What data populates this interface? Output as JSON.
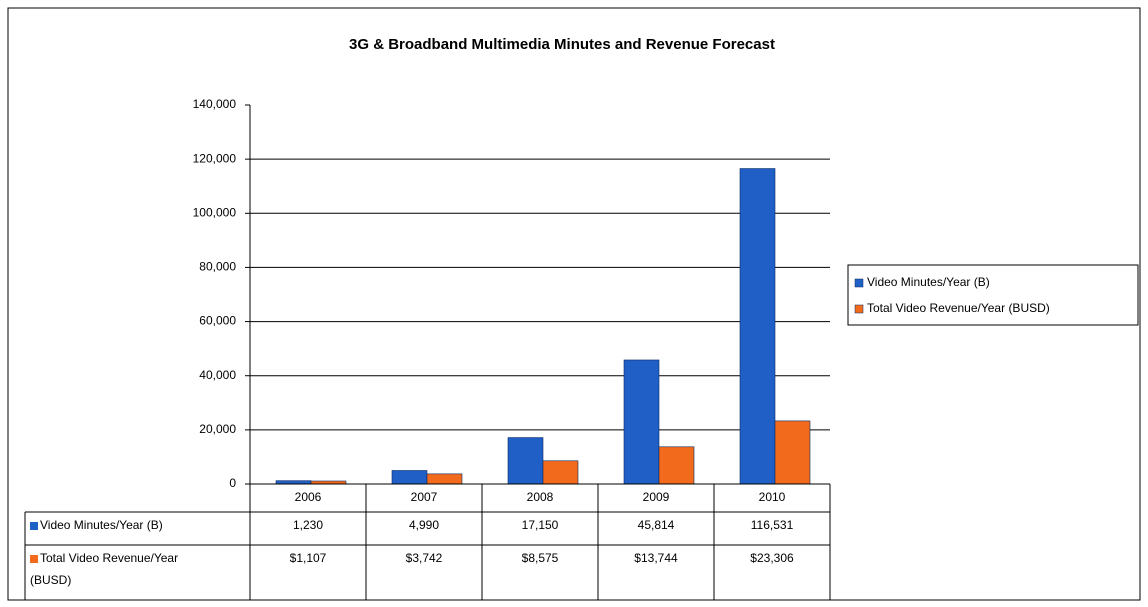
{
  "chart_data": {
    "type": "bar",
    "title": "3G & Broadband Multimedia Minutes and Revenue Forecast",
    "categories": [
      "2006",
      "2007",
      "2008",
      "2009",
      "2010"
    ],
    "series": [
      {
        "name": "Video Minutes/Year (B)",
        "color": "#1f5fc6",
        "values": [
          1230,
          4990,
          17150,
          45814,
          116531
        ],
        "value_labels": [
          "1,230",
          "4,990",
          "17,150",
          "45,814",
          "116,531"
        ]
      },
      {
        "name": "Total Video Revenue/Year (BUSD)",
        "color": "#f26a1b",
        "values": [
          1107,
          3742,
          8575,
          13744,
          23306
        ],
        "value_labels": [
          "$1,107",
          "$3,742",
          "$8,575",
          "$13,744",
          "$23,306"
        ]
      }
    ],
    "ylim": [
      0,
      140000
    ],
    "yticks": [
      0,
      {
        "value": 20000,
        "label": "20,000"
      },
      {
        "value": 40000,
        "label": "40,000"
      },
      {
        "value": 60000,
        "label": "60,000"
      },
      {
        "value": 80000,
        "label": "80,000"
      },
      {
        "value": 100000,
        "label": "100,000"
      },
      {
        "value": 120000,
        "label": "120,000"
      },
      {
        "value": 140000,
        "label": "140,000"
      }
    ],
    "grid": true,
    "legend": "right"
  }
}
